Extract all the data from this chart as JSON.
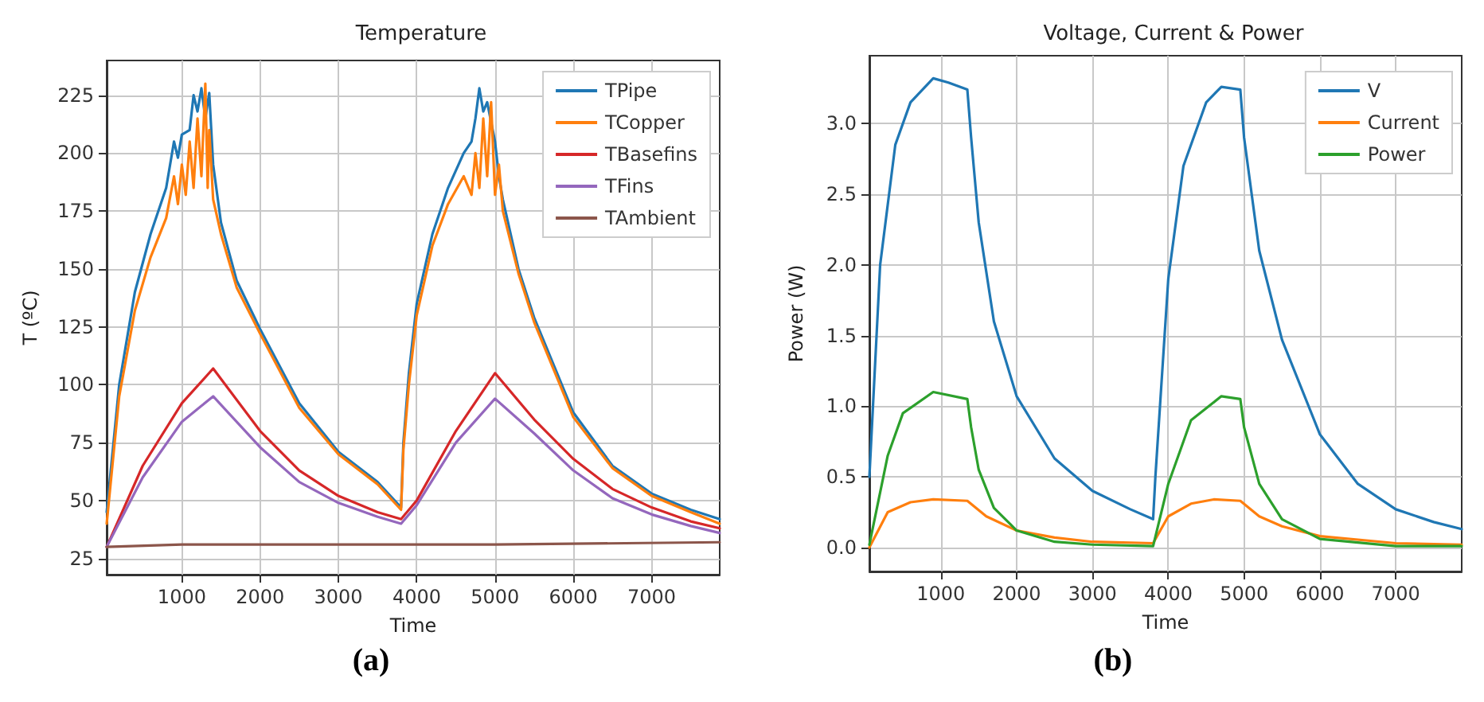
{
  "chart_data": [
    {
      "type": "line",
      "title": "Temperature",
      "xlabel": "Time",
      "ylabel": "T (ºC)",
      "annotations": [
        "(a)"
      ],
      "xlim": [
        40,
        7870
      ],
      "ylim": [
        18,
        240
      ],
      "xticks": [
        1000,
        2000,
        3000,
        4000,
        5000,
        6000,
        7000
      ],
      "yticks": [
        25,
        50,
        75,
        100,
        125,
        150,
        175,
        200,
        225
      ],
      "grid": true,
      "legend": "top right",
      "marker": "none",
      "line_style": "solid",
      "series": [
        {
          "name": "TPipe",
          "color": "#1f77b4",
          "x": [
            40,
            200,
            400,
            600,
            800,
            900,
            950,
            1000,
            1100,
            1150,
            1200,
            1250,
            1300,
            1350,
            1400,
            1500,
            1700,
            2000,
            2500,
            3000,
            3500,
            3800,
            3830,
            3900,
            4000,
            4200,
            4400,
            4600,
            4700,
            4750,
            4800,
            4850,
            4900,
            5000,
            5050,
            5100,
            5300,
            5500,
            6000,
            6500,
            7000,
            7500,
            7870
          ],
          "values": [
            45,
            100,
            140,
            165,
            185,
            205,
            198,
            208,
            210,
            225,
            218,
            228,
            215,
            226,
            195,
            170,
            145,
            124,
            92,
            71,
            58,
            47,
            75,
            105,
            135,
            165,
            185,
            200,
            205,
            215,
            228,
            218,
            222,
            205,
            190,
            180,
            150,
            129,
            88,
            65,
            53,
            46,
            42
          ]
        },
        {
          "name": "TCopper",
          "color": "#ff7f0e",
          "x": [
            40,
            200,
            400,
            600,
            800,
            900,
            950,
            1000,
            1050,
            1100,
            1150,
            1200,
            1250,
            1300,
            1330,
            1350,
            1400,
            1500,
            1700,
            2000,
            2500,
            3000,
            3500,
            3800,
            3830,
            3900,
            4000,
            4200,
            4400,
            4600,
            4700,
            4750,
            4800,
            4850,
            4900,
            4950,
            5000,
            5050,
            5100,
            5300,
            5500,
            6000,
            6500,
            7000,
            7500,
            7870
          ],
          "values": [
            40,
            95,
            132,
            155,
            172,
            190,
            178,
            195,
            182,
            205,
            185,
            215,
            190,
            230,
            185,
            210,
            180,
            165,
            142,
            122,
            90,
            70,
            57,
            46,
            72,
            100,
            130,
            160,
            178,
            190,
            182,
            200,
            185,
            215,
            190,
            222,
            182,
            195,
            175,
            148,
            127,
            86,
            64,
            52,
            45,
            40
          ]
        },
        {
          "name": "TBasefins",
          "color": "#d62728",
          "x": [
            40,
            500,
            1000,
            1400,
            2000,
            2500,
            3000,
            3500,
            3800,
            4000,
            4500,
            5000,
            5500,
            6000,
            6500,
            7000,
            7500,
            7870
          ],
          "values": [
            30,
            65,
            92,
            107,
            80,
            63,
            52,
            45,
            42,
            50,
            80,
            105,
            85,
            68,
            55,
            47,
            41,
            38
          ]
        },
        {
          "name": "TFins",
          "color": "#9467bd",
          "x": [
            40,
            500,
            1000,
            1400,
            2000,
            2500,
            3000,
            3500,
            3800,
            4000,
            4500,
            5000,
            5500,
            6000,
            6500,
            7000,
            7500,
            7870
          ],
          "values": [
            30,
            60,
            84,
            95,
            73,
            58,
            49,
            43,
            40,
            48,
            75,
            94,
            79,
            63,
            51,
            44,
            39,
            36
          ]
        },
        {
          "name": "TAmbient",
          "color": "#8c564b",
          "x": [
            40,
            1000,
            3000,
            5000,
            7870
          ],
          "values": [
            30,
            31,
            31,
            31,
            32
          ]
        }
      ]
    },
    {
      "type": "line",
      "title": "Voltage, Current & Power",
      "xlabel": "Time",
      "ylabel": "Power (W)",
      "annotations": [
        "(b)"
      ],
      "xlim": [
        58,
        7870
      ],
      "ylim": [
        -0.17,
        3.48
      ],
      "xticks": [
        1000,
        2000,
        3000,
        4000,
        5000,
        6000,
        7000
      ],
      "yticks": [
        {
          "value": 0,
          "label": "0.0"
        },
        0.5,
        {
          "value": 1,
          "label": "1.0"
        },
        1.5,
        {
          "value": 2,
          "label": "2.0"
        },
        2.5,
        {
          "value": 3,
          "label": "3.0"
        }
      ],
      "grid": true,
      "legend": "top right",
      "marker": "none",
      "line_style": "solid",
      "series": [
        {
          "name": "V",
          "color": "#1f77b4",
          "x": [
            58,
            200,
            400,
            600,
            900,
            1100,
            1350,
            1400,
            1500,
            1700,
            2000,
            2500,
            3000,
            3500,
            3800,
            3830,
            4000,
            4200,
            4500,
            4700,
            4950,
            5000,
            5200,
            5500,
            6000,
            6500,
            7000,
            7500,
            7870
          ],
          "values": [
            0.5,
            2.0,
            2.85,
            3.15,
            3.32,
            3.29,
            3.24,
            2.9,
            2.3,
            1.6,
            1.07,
            0.63,
            0.4,
            0.27,
            0.2,
            0.5,
            1.9,
            2.7,
            3.15,
            3.26,
            3.24,
            2.9,
            2.1,
            1.47,
            0.8,
            0.45,
            0.27,
            0.18,
            0.13
          ]
        },
        {
          "name": "Current",
          "color": "#ff7f0e",
          "x": [
            58,
            300,
            600,
            900,
            1350,
            1600,
            2000,
            2500,
            3000,
            3800,
            4000,
            4300,
            4600,
            4950,
            5200,
            5500,
            6000,
            7000,
            7870
          ],
          "values": [
            0,
            0.25,
            0.32,
            0.34,
            0.33,
            0.22,
            0.12,
            0.07,
            0.04,
            0.03,
            0.22,
            0.31,
            0.34,
            0.33,
            0.22,
            0.15,
            0.08,
            0.03,
            0.02
          ]
        },
        {
          "name": "Power",
          "color": "#2ca02c",
          "x": [
            58,
            300,
            500,
            900,
            1350,
            1400,
            1500,
            1700,
            2000,
            2500,
            3000,
            3800,
            4000,
            4300,
            4700,
            4950,
            5000,
            5200,
            5500,
            6000,
            7000,
            7870
          ],
          "values": [
            0.02,
            0.65,
            0.95,
            1.1,
            1.05,
            0.85,
            0.55,
            0.28,
            0.12,
            0.04,
            0.02,
            0.01,
            0.45,
            0.9,
            1.07,
            1.05,
            0.85,
            0.45,
            0.2,
            0.06,
            0.01,
            0.01
          ]
        }
      ]
    }
  ]
}
